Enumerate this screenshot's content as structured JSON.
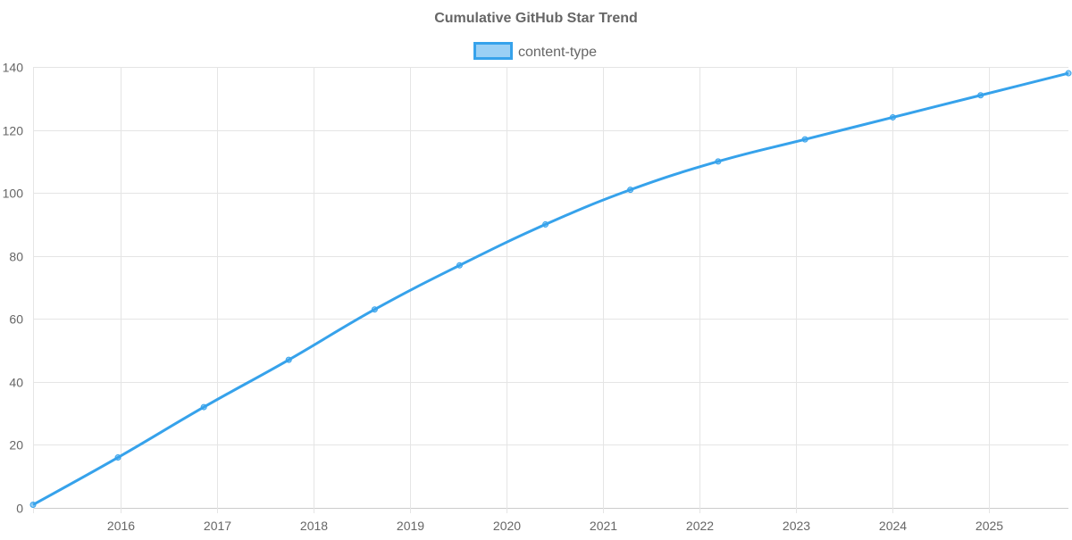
{
  "chart_data": {
    "type": "line",
    "title": "Cumulative GitHub Star Trend",
    "legend": {
      "entries": [
        "content-type"
      ],
      "placement": "top-center"
    },
    "xlabel": "",
    "ylabel": "",
    "x_ticks": [
      "2016",
      "2017",
      "2018",
      "2019",
      "2020",
      "2021",
      "2022",
      "2023",
      "2024",
      "2025"
    ],
    "y_ticks": [
      "0",
      "20",
      "40",
      "60",
      "80",
      "100",
      "120",
      "140"
    ],
    "xlim": [
      2015.09,
      2025.82
    ],
    "ylim": [
      0,
      140
    ],
    "grid": true,
    "series": [
      {
        "name": "content-type",
        "color": "#36a2eb",
        "x": [
          2015.09,
          2015.97,
          2016.86,
          2017.74,
          2018.63,
          2019.51,
          2020.4,
          2021.28,
          2022.19,
          2023.09,
          2024.0,
          2024.91,
          2025.82
        ],
        "values": [
          1,
          16,
          32,
          47,
          63,
          77,
          90,
          101,
          110,
          117,
          124,
          131,
          138
        ]
      }
    ]
  }
}
